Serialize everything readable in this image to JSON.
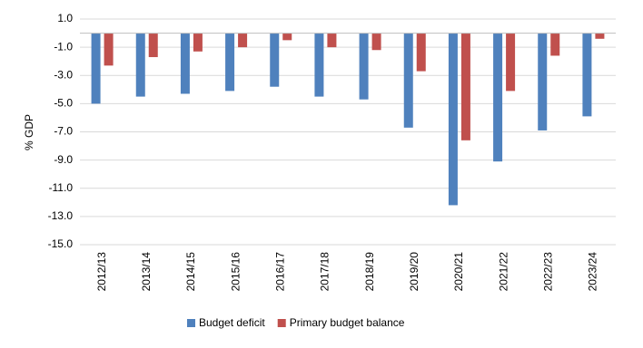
{
  "chart_data": {
    "type": "bar",
    "y_label": "% GDP",
    "categories": [
      "2012/13",
      "2013/14",
      "2014/15",
      "2015/16",
      "2016/17",
      "2017/18",
      "2018/19",
      "2019/20",
      "2020/21",
      "2021/22",
      "2022/23",
      "2023/24"
    ],
    "series": [
      {
        "name": "Budget deficit",
        "color": "#4f81bd",
        "values": [
          -5.0,
          -4.5,
          -4.3,
          -4.1,
          -3.8,
          -4.5,
          -4.7,
          -6.7,
          -12.2,
          -9.1,
          -6.9,
          -5.9
        ]
      },
      {
        "name": "Primary budget balance",
        "color": "#c0504d",
        "values": [
          -2.3,
          -1.7,
          -1.3,
          -1.0,
          -0.5,
          -1.0,
          -1.2,
          -2.7,
          -7.6,
          -4.1,
          -1.6,
          -0.4
        ]
      }
    ],
    "ylim": [
      -15,
      1
    ],
    "yticks": [
      {
        "value": -15,
        "label": "-15.0"
      },
      {
        "value": -13,
        "label": "-13.0"
      },
      {
        "value": -11,
        "label": "-11.0"
      },
      {
        "value": -9,
        "label": "-9.0"
      },
      {
        "value": -7,
        "label": "-7.0"
      },
      {
        "value": -5,
        "label": "-5.0"
      },
      {
        "value": -3,
        "label": "-3.0"
      },
      {
        "value": -1,
        "label": "-1.0"
      },
      {
        "value": 1,
        "label": "1.0"
      }
    ],
    "grid": true,
    "legend": "bottom"
  }
}
